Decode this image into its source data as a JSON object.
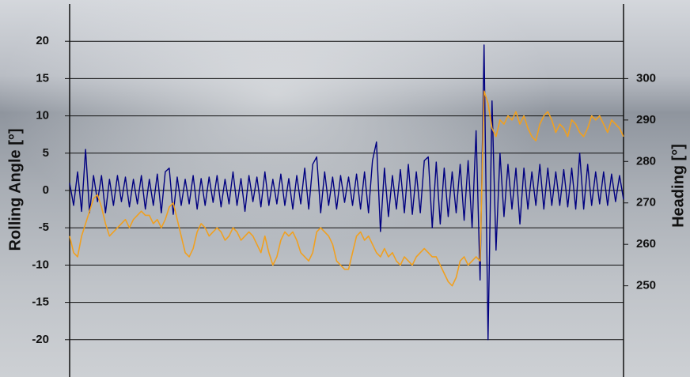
{
  "chart_data": {
    "type": "line",
    "y_label": "Rolling Angle [°]",
    "y2_label": "Heading [°]",
    "ylim": [
      -25,
      25
    ],
    "yticks": [
      -20,
      -15,
      -10,
      -5,
      0,
      5,
      10,
      15,
      20
    ],
    "y2lim": [
      228,
      318
    ],
    "y2ticks": [
      250,
      260,
      270,
      280,
      290,
      300
    ],
    "grid": true,
    "series": [
      {
        "color": "#000080",
        "axis": "y",
        "values": [
          1,
          -2,
          2.5,
          -2.8,
          5.5,
          -3,
          2,
          -1.5,
          2,
          -3,
          1.5,
          -2,
          2,
          -1.5,
          1.8,
          -2.2,
          1.5,
          -1.8,
          2,
          -2.5,
          1.5,
          -2,
          2.2,
          -3,
          2.5,
          3,
          -3.2,
          1.8,
          -2,
          1.5,
          -1.8,
          2,
          -2.5,
          1.6,
          -2,
          1.8,
          -1.6,
          2,
          -2.2,
          1.5,
          -1.8,
          2.5,
          -2,
          1.6,
          -2.8,
          2,
          -1.5,
          1.8,
          -2.2,
          2.5,
          -2,
          1.5,
          -1.8,
          2.2,
          -2,
          1.6,
          -2.5,
          2,
          -1.8,
          3,
          -2.5,
          3.5,
          4.5,
          -3,
          2.5,
          -2,
          1.8,
          -2.5,
          2,
          -1.6,
          1.8,
          -2,
          2.2,
          -2.5,
          2.5,
          -3,
          4,
          6.5,
          -5.5,
          3,
          -3.5,
          2,
          -2.5,
          2.8,
          -3,
          3.5,
          -3.2,
          2.5,
          -3,
          4,
          4.5,
          -5,
          3.8,
          -4.5,
          3,
          -3.5,
          2.5,
          -3,
          3.5,
          -4,
          4,
          -5,
          8,
          -12,
          19.5,
          -20,
          12,
          -8,
          5,
          -3.5,
          3.5,
          -2.5,
          3,
          -4.5,
          3,
          -2.5,
          2.5,
          -2,
          3.5,
          -2.5,
          3,
          -2,
          2.5,
          -2,
          2.8,
          -2.2,
          3,
          -2.5,
          5,
          -2.5,
          3.5,
          -2,
          2.5,
          -1.8,
          2.5,
          -2,
          2.2,
          -1.5,
          2,
          -1.2
        ]
      },
      {
        "color": "#f0a020",
        "axis": "y2",
        "values": [
          262,
          258,
          257,
          262,
          265,
          268,
          271,
          272,
          269,
          265,
          262,
          263,
          264,
          265,
          266,
          264,
          266,
          267,
          268,
          267,
          267,
          265,
          266,
          264,
          266,
          269,
          270,
          266,
          262,
          258,
          257,
          259,
          263,
          265,
          264,
          262,
          263,
          264,
          263,
          261,
          262,
          264,
          263,
          261,
          262,
          263,
          262,
          260,
          258,
          262,
          258,
          255,
          257,
          261,
          263,
          262,
          263,
          261,
          258,
          257,
          256,
          258,
          263,
          264,
          263,
          262,
          260,
          256,
          255,
          254,
          254,
          258,
          262,
          263,
          261,
          262,
          260,
          258,
          257,
          259,
          257,
          258,
          256,
          255,
          257,
          256,
          255,
          257,
          258,
          259,
          258,
          257,
          257,
          255,
          253,
          251,
          250,
          252,
          256,
          257,
          255,
          256,
          257,
          256,
          297,
          294,
          288,
          286,
          290,
          289,
          291,
          290,
          292,
          289,
          291,
          288,
          286,
          285,
          289,
          291,
          292,
          290,
          287,
          289,
          288,
          286,
          290,
          289,
          287,
          286,
          288,
          291,
          290,
          291,
          289,
          287,
          290,
          289,
          288,
          286
        ]
      }
    ]
  }
}
